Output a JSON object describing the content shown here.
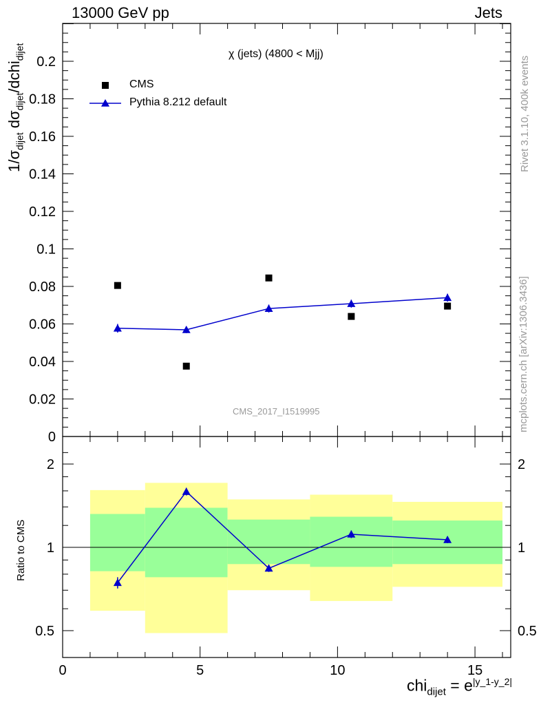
{
  "header": {
    "left": "13000 GeV pp",
    "right": "Jets"
  },
  "side": {
    "rivet": "Rivet 3.1.10,  400k events",
    "mcplots": "mcplots.cern.ch [arXiv:1306.3436]"
  },
  "watermark": "CMS_2017_I1519995",
  "chart_data": [
    {
      "type": "scatter",
      "title": "χ (jets) (4800 < Mjj)",
      "ylabel": "1/σ_dijet dσ_dijet/dchi_dijet",
      "xlim": [
        0,
        16.3
      ],
      "ylim": [
        0,
        0.22
      ],
      "yticks": [
        0,
        0.02,
        0.04,
        0.06,
        0.08,
        0.1,
        0.12,
        0.14,
        0.16,
        0.18,
        0.2
      ],
      "ytick_labels": [
        "0",
        "0.02",
        "0.04",
        "0.06",
        "0.08",
        "0.1",
        "0.12",
        "0.14",
        "0.16",
        "0.18",
        "0.2"
      ],
      "legend_position": "top-left",
      "series": [
        {
          "name": "CMS",
          "marker": "square",
          "color": "#000000",
          "x": [
            2,
            4.5,
            7.5,
            10.5,
            14
          ],
          "y": [
            0.0805,
            0.0375,
            0.0845,
            0.064,
            0.0695
          ]
        },
        {
          "name": "Pythia 8.212 default",
          "marker": "triangle",
          "line": true,
          "color": "#0000cc",
          "x": [
            2,
            4.5,
            7.5,
            10.5,
            14
          ],
          "y": [
            0.0577,
            0.0569,
            0.0682,
            0.0708,
            0.074
          ],
          "yerr": [
            0.0023,
            0.0018,
            0.0021,
            0.0021,
            0.0021
          ]
        }
      ]
    },
    {
      "type": "line",
      "ylabel": "Ratio to CMS",
      "xlabel": "chi_dijet = e^|y_1-y_2|",
      "xlim": [
        0,
        16.3
      ],
      "ylim": [
        0.35,
        2.3
      ],
      "log_y": true,
      "yticks": [
        0.5,
        1,
        2
      ],
      "ytick_labels": [
        "0.5",
        "1",
        "2"
      ],
      "xticks": [
        0,
        5,
        10,
        15
      ],
      "xtick_labels": [
        "0",
        "5",
        "10",
        "15"
      ],
      "bands": [
        {
          "x0": 1,
          "x1": 3,
          "inner": [
            0.82,
            1.32
          ],
          "outer": [
            0.59,
            1.61
          ]
        },
        {
          "x0": 3,
          "x1": 6,
          "inner": [
            0.78,
            1.39
          ],
          "outer": [
            0.49,
            1.71
          ]
        },
        {
          "x0": 6,
          "x1": 9,
          "inner": [
            0.87,
            1.26
          ],
          "outer": [
            0.7,
            1.49
          ]
        },
        {
          "x0": 9,
          "x1": 12,
          "inner": [
            0.85,
            1.29
          ],
          "outer": [
            0.64,
            1.55
          ]
        },
        {
          "x0": 12,
          "x1": 16,
          "inner": [
            0.87,
            1.25
          ],
          "outer": [
            0.72,
            1.46
          ]
        }
      ],
      "band_colors": {
        "inner": "#99ff99",
        "outer": "#ffff99"
      },
      "series": [
        {
          "name": "Pythia 8.212 default",
          "color": "#0000cc",
          "x": [
            2,
            4.5,
            7.5,
            10.5,
            14
          ],
          "y": [
            0.745,
            1.59,
            0.84,
            1.115,
            1.065
          ],
          "yerr": [
            0.035,
            0.05,
            0.025,
            0.035,
            0.03
          ]
        }
      ]
    }
  ]
}
